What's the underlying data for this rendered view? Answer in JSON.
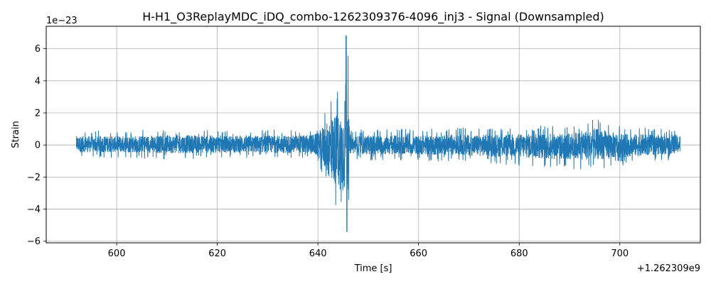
{
  "chart_data": {
    "type": "line",
    "title": "H-H1_O3ReplayMDC_iDQ_combo-1262309376-4096_inj3 - Signal (Downsampled)",
    "xlabel": "Time [s]",
    "ylabel": "Strain",
    "x_offset_label": "+1.262309e9",
    "y_multiplier_label": "1e−23",
    "xlim": [
      586,
      716
    ],
    "ylim": [
      -6.1,
      7.4
    ],
    "x_ticks": [
      600,
      620,
      640,
      660,
      680,
      700
    ],
    "x_tick_labels": [
      "600",
      "620",
      "640",
      "660",
      "680",
      "700"
    ],
    "y_ticks": [
      -6,
      -4,
      -2,
      0,
      2,
      4,
      6
    ],
    "y_tick_labels": [
      "−6",
      "−4",
      "−2",
      "0",
      "2",
      "4",
      "6"
    ],
    "grid": true,
    "series": [
      {
        "color": "#1f77b4",
        "x_range": [
          592,
          712
        ],
        "envelope": {
          "x": [
            592,
            600,
            610,
            620,
            630,
            638,
            640,
            641,
            642,
            643,
            644,
            645,
            645.6,
            646,
            646.3,
            650,
            660,
            670,
            680,
            690,
            695,
            700,
            705,
            712
          ],
          "ymax": [
            0.9,
            0.9,
            1.0,
            0.95,
            0.95,
            1.0,
            1.2,
            2.0,
            2.8,
            3.3,
            3.5,
            3.7,
            6.8,
            5.5,
            0.9,
            1.0,
            1.0,
            1.1,
            1.2,
            1.3,
            1.7,
            1.2,
            1.1,
            1.0
          ],
          "ymin": [
            -0.8,
            -0.8,
            -0.9,
            -0.85,
            -0.85,
            -0.9,
            -1.2,
            -2.0,
            -3.2,
            -3.7,
            -4.2,
            -4.6,
            -5.4,
            -5.0,
            -0.9,
            -1.0,
            -1.0,
            -1.1,
            -1.3,
            -1.5,
            -1.6,
            -1.3,
            -1.1,
            -0.9
          ]
        }
      }
    ]
  }
}
